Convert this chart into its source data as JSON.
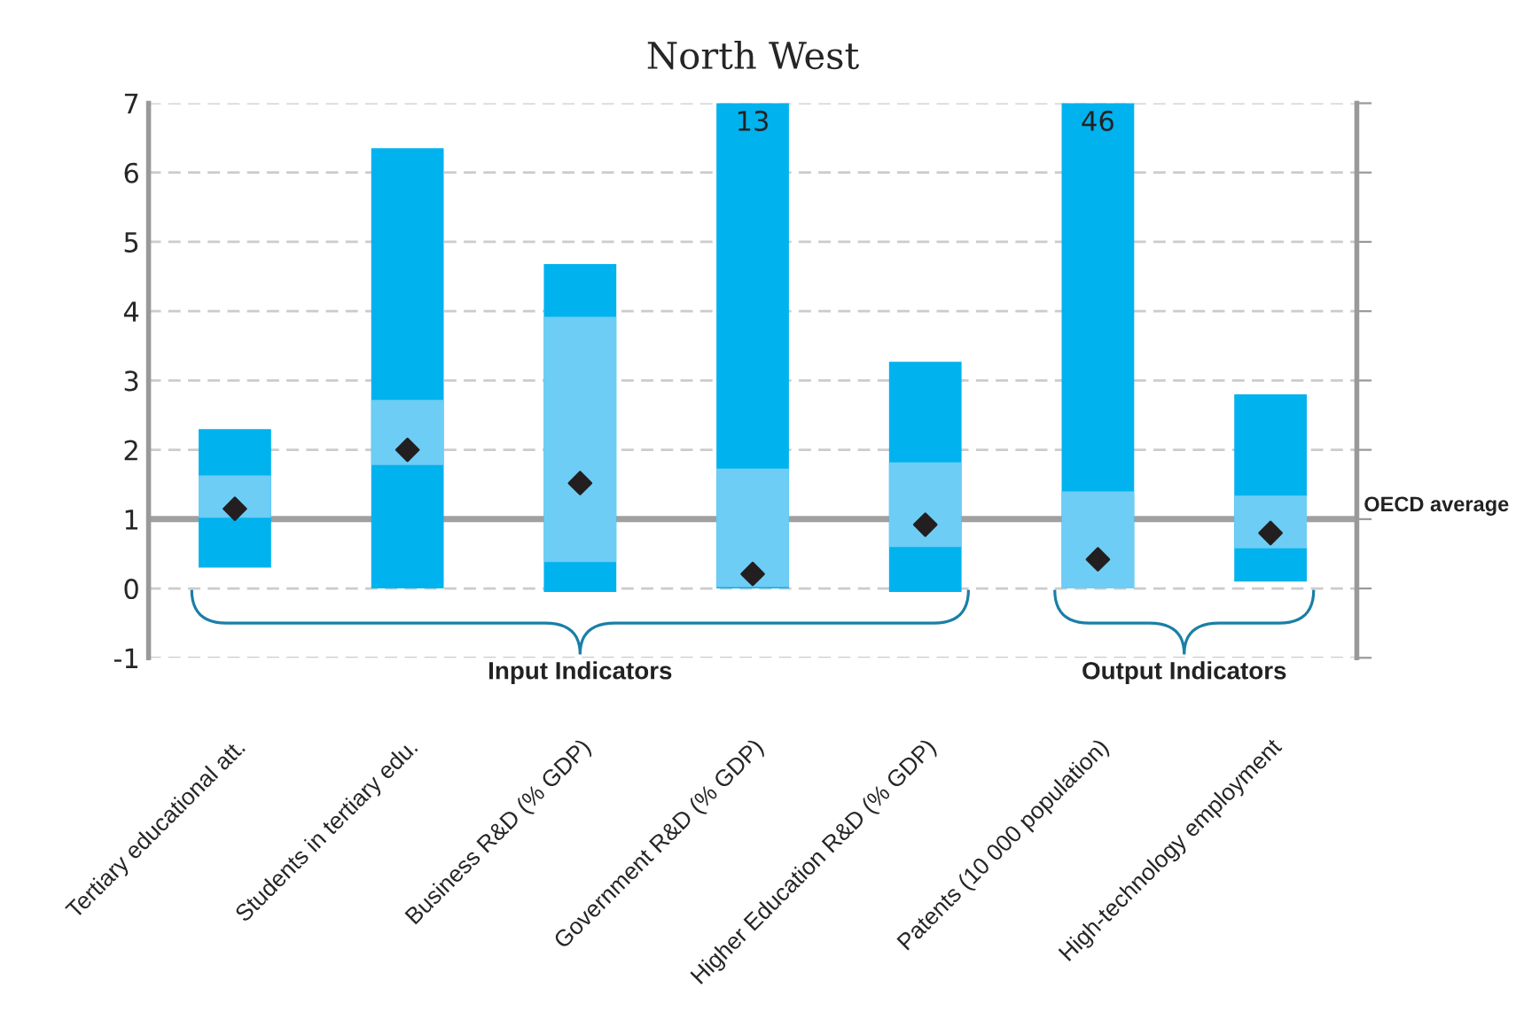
{
  "chart_data": {
    "type": "bar",
    "title": "North West",
    "categories": [
      "Tertiary educational att.",
      "Students in tertiary edu.",
      "Business R&D (% GDP)",
      "Government R&D (% GDP)",
      "Higher Education R&D (% GDP)",
      "Patents (10 000 population)",
      "High-technology employment"
    ],
    "series": [
      {
        "color": "#00b2ee",
        "base": [
          0.3,
          0,
          -0.05,
          0,
          -0.05,
          0,
          0.1
        ],
        "values": [
          2.0,
          6.35,
          4.73,
          13,
          3.32,
          46,
          2.7
        ],
        "value_labels": [
          null,
          null,
          null,
          "13",
          null,
          "46",
          null
        ]
      },
      {
        "color": "#6dcdf5",
        "base": [
          1.02,
          1.78,
          0.38,
          0.02,
          0.6,
          0,
          0.58
        ],
        "values": [
          0.61,
          0.94,
          3.54,
          1.71,
          1.22,
          1.4,
          0.76
        ]
      },
      {
        "type": "scatter",
        "color": "#231f20",
        "marker": "diamond",
        "x": [
          "Tertiary educational att.",
          "Students in tertiary edu.",
          "Business R&D (% GDP)",
          "Government R&D (% GDP)",
          "Higher Education R&D (% GDP)",
          "Patents (10 000 population)",
          "High-technology employment"
        ],
        "values": [
          1.15,
          2.0,
          1.52,
          0.21,
          0.92,
          0.42,
          0.8
        ]
      }
    ],
    "ylim": [
      -1,
      7
    ],
    "yticks": [
      -1,
      0,
      1,
      2,
      3,
      4,
      5,
      6,
      7
    ],
    "grid": "y",
    "legend": false,
    "ref_lines": [
      {
        "axis": "y",
        "value": 1,
        "label": "OECD average",
        "color": "#a0a0a0"
      }
    ],
    "annotations": [
      "Input Indicators",
      "Output Indicators"
    ]
  }
}
